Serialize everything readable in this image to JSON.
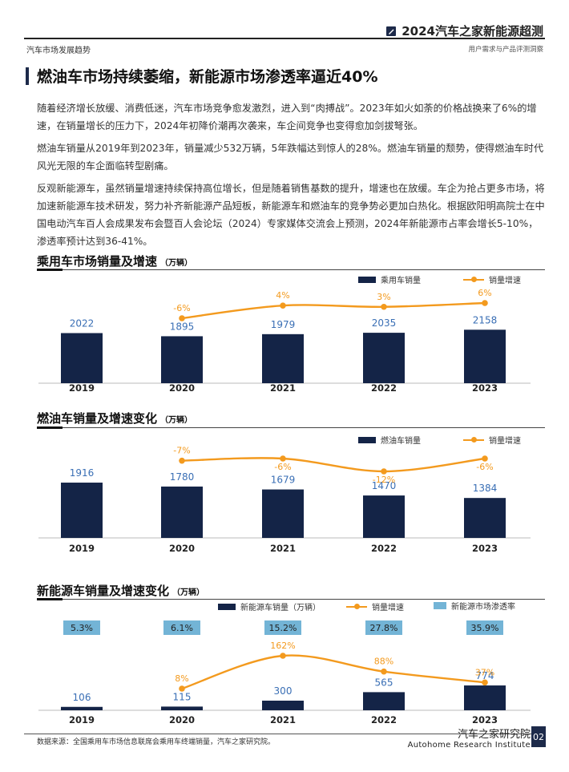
{
  "header": {
    "brand": "2024汽车之家新能源超测",
    "section": "汽车市场发展趋势",
    "subtitle": "用户需求与产品评测洞察"
  },
  "title": "燃油车市场持续萎缩，新能源市场渗透率逼近40%",
  "paragraphs": [
    "随着经济增长放缓、消费低迷，汽车市场竞争愈发激烈，进入到“肉搏战”。2023年如火如荼的价格战换来了6%的增速，在销量增长的压力下，2024年初降价潮再次袭来，车企间竞争也变得愈加剑拔弩张。",
    "燃油车销量从2019年到2023年，销量减少532万辆，5年跌幅达到惊人的28%。燃油车销量的颓势，使得燃油车时代风光无限的车企面临转型剧痛。",
    "反观新能源车，虽然销量增速持续保持高位增长，但是随着销售基数的提升，增速也在放缓。车企为抢占更多市场，将加速新能源车技术研发，努力补齐新能源产品短板，新能源车和燃油车的竞争势必更加白热化。根据欧阳明高院士在中国电动汽车百人会成果发布会暨百人会论坛（2024）专家媒体交流会上预测，2024年新能源市占率会增长5-10%，渗透率预计达到36-41%。"
  ],
  "chart_data": [
    {
      "type": "bar",
      "title": "乘用车市场销量及增速",
      "unit": "（万辆）",
      "categories": [
        "2019",
        "2020",
        "2021",
        "2022",
        "2023"
      ],
      "series": [
        {
          "name": "乘用车销量",
          "type": "bar",
          "values": [
            2022,
            1895,
            1979,
            2035,
            2158
          ],
          "labels": [
            "2022",
            "1895",
            "1979",
            "2035",
            "2158"
          ]
        },
        {
          "name": "销量增速",
          "type": "line",
          "values": [
            null,
            -6,
            4,
            3,
            6
          ],
          "labels": [
            "",
            "-6%",
            "4%",
            "3%",
            "6%"
          ]
        }
      ],
      "legend": "top-right",
      "colors": {
        "bar": "#142447",
        "line": "#f39a1e",
        "bar_label": "#3a6fb5"
      }
    },
    {
      "type": "bar",
      "title": "燃油车销量及增速变化",
      "unit": "（万辆）",
      "categories": [
        "2019",
        "2020",
        "2021",
        "2022",
        "2023"
      ],
      "series": [
        {
          "name": "燃油车销量",
          "type": "bar",
          "values": [
            1916,
            1780,
            1679,
            1470,
            1384
          ],
          "labels": [
            "1916",
            "1780",
            "1679",
            "1470",
            "1384"
          ]
        },
        {
          "name": "销量增速",
          "type": "line",
          "values": [
            null,
            -7,
            -6,
            -12,
            -6
          ],
          "labels": [
            "",
            "-7%",
            "-6%",
            "-12%",
            "-6%"
          ]
        }
      ],
      "legend": "top-right",
      "colors": {
        "bar": "#142447",
        "line": "#f39a1e",
        "bar_label": "#3a6fb5"
      }
    },
    {
      "type": "bar",
      "title": "新能源车销量及增速变化",
      "unit": "（万辆）",
      "categories": [
        "2019",
        "2020",
        "2021",
        "2022",
        "2023"
      ],
      "series": [
        {
          "name": "新能源车销量（万辆）",
          "type": "bar",
          "values": [
            106,
            115,
            300,
            565,
            774
          ],
          "labels": [
            "106",
            "115",
            "300",
            "565",
            "774"
          ]
        },
        {
          "name": "销量增速",
          "type": "line",
          "values": [
            null,
            8,
            162,
            88,
            37
          ],
          "labels": [
            "",
            "8%",
            "162%",
            "88%",
            "37%"
          ]
        },
        {
          "name": "新能源市场渗透率",
          "type": "badge",
          "values": [
            5.3,
            6.1,
            15.2,
            27.8,
            35.9
          ],
          "labels": [
            "5.3%",
            "6.1%",
            "15.2%",
            "27.8%",
            "35.9%"
          ]
        }
      ],
      "legend": "top-right",
      "colors": {
        "bar": "#142447",
        "line": "#f39a1e",
        "badge": "#73b4d6",
        "bar_label": "#3a6fb5"
      }
    }
  ],
  "footer": {
    "source": "数据来源：全国乘用车市场信息联席会乘用车终端销量，汽车之家研究院。",
    "institute_cn": "汽车之家研究院",
    "institute_en": "Autohome Research Institute",
    "page": "02"
  },
  "colors": {
    "navy": "#142447",
    "orange": "#f39a1e",
    "sky": "#73b4d6",
    "dark_accent": "#1d2a4a"
  }
}
